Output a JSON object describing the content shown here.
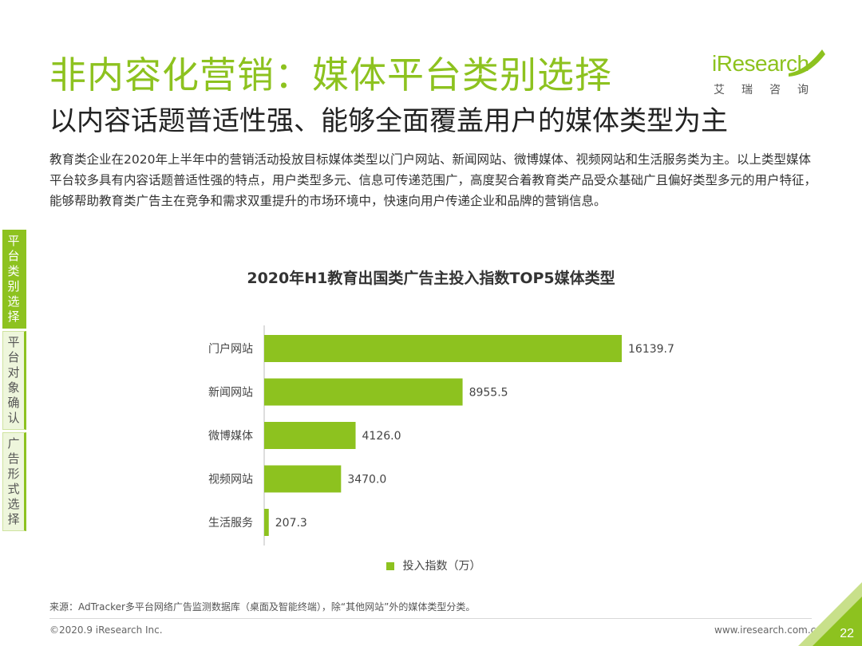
{
  "header": {
    "title": "非内容化营销：媒体平台类别选择",
    "subtitle": "以内容话题普适性强、能够全面覆盖用户的媒体类型为主"
  },
  "logo": {
    "brand": "iResearch",
    "cn": "艾瑞咨询"
  },
  "intro_text": "教育类企业在2020年上半年中的营销活动投放目标媒体类型以门户网站、新闻网站、微博媒体、视频网站和生活服务类为主。以上类型媒体平台较多具有内容话题普适性强的特点，用户类型多元、信息可传递范围广，高度契合着教育类产品受众基础广且偏好类型多元的用户特征，能够帮助教育类广告主在竞争和需求双重提升的市场环境中，快速向用户传递企业和品牌的营销信息。",
  "side_tabs": [
    {
      "label": "平台类别选择"
    },
    {
      "label": "平台对象确认"
    },
    {
      "label": "广告形式选择"
    }
  ],
  "chart_data": {
    "type": "bar",
    "orientation": "horizontal",
    "title": "2020年H1教育出国类广告主投入指数TOP5媒体类型",
    "categories": [
      "门户网站",
      "新闻网站",
      "微博媒体",
      "视频网站",
      "生活服务"
    ],
    "values": [
      16139.7,
      8955.5,
      4126.0,
      3470.0,
      207.3
    ],
    "value_labels": [
      "16139.7",
      "8955.5",
      "4126.0",
      "3470.0",
      "207.3"
    ],
    "series": [
      {
        "name": "投入指数（万）"
      }
    ],
    "xlim": [
      0,
      16139.7
    ],
    "legend_position": "bottom",
    "grid": false,
    "bar_color": "#8dc21f"
  },
  "footer": {
    "source": "来源：AdTracker多平台网络广告监测数据库（桌面及智能终端），除“其他网站”外的媒体类型分类。",
    "copyright": "©2020.9 iResearch Inc.",
    "website": "www.iresearch.com.cn",
    "page_number": "22"
  },
  "colors": {
    "accent": "#8dc21f"
  }
}
